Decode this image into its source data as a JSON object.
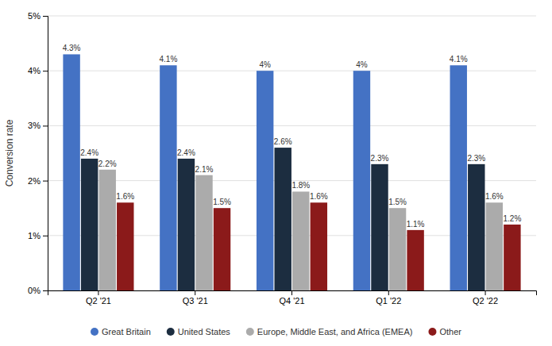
{
  "chart_data": {
    "type": "bar",
    "categories": [
      "Q2 '21",
      "Q3 '21",
      "Q4 '21",
      "Q1 '22",
      "Q2 '22"
    ],
    "series": [
      {
        "name": "Great Britain",
        "color": "#4472C4",
        "values": [
          4.3,
          4.1,
          4.0,
          4.0,
          4.1
        ],
        "value_labels": [
          "4.3%",
          "4.1%",
          "4%",
          "4%",
          "4.1%"
        ]
      },
      {
        "name": "United States",
        "color": "#1C2D40",
        "values": [
          2.4,
          2.4,
          2.6,
          2.3,
          2.3
        ],
        "value_labels": [
          "2.4%",
          "2.4%",
          "2.6%",
          "2.3%",
          "2.3%"
        ]
      },
      {
        "name": "Europe, Middle East, and Africa (EMEA)",
        "color": "#ABABAB",
        "values": [
          2.2,
          2.1,
          1.8,
          1.5,
          1.6
        ],
        "value_labels": [
          "2.2%",
          "2.1%",
          "1.8%",
          "1.5%",
          "1.6%"
        ]
      },
      {
        "name": "Other",
        "color": "#8B1A1A",
        "values": [
          1.6,
          1.5,
          1.6,
          1.1,
          1.2
        ],
        "value_labels": [
          "1.6%",
          "1.5%",
          "1.6%",
          "1.1%",
          "1.2%"
        ]
      }
    ],
    "ylabel": "Conversion rate",
    "ylim": [
      0,
      5
    ],
    "yticks": [
      {
        "value": 0,
        "label": "0%"
      },
      {
        "value": 1,
        "label": "1%"
      },
      {
        "value": 2,
        "label": "2%"
      },
      {
        "value": 3,
        "label": "3%"
      },
      {
        "value": 4,
        "label": "4%"
      },
      {
        "value": 5,
        "label": "5%"
      }
    ],
    "grid": true,
    "data_labels": true,
    "legend": "bottom"
  }
}
